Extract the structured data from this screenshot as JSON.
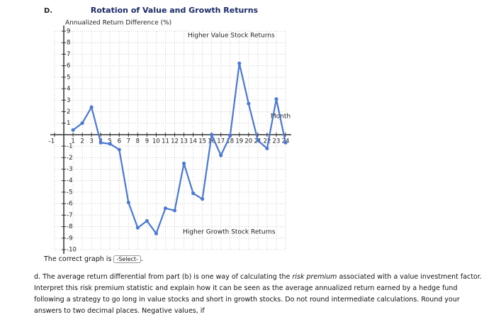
{
  "option_letter": "D.",
  "chart_data": {
    "type": "line",
    "title": "Rotation of Value and Growth Returns",
    "y_label": "Annualized Return Difference (%)",
    "annotations": [
      "Higher Value Stock Returns",
      "Month",
      "Higher Growth Stock Returns"
    ],
    "x": [
      1,
      2,
      3,
      4,
      5,
      6,
      7,
      8,
      9,
      10,
      11,
      12,
      13,
      14,
      15,
      16,
      17,
      18,
      19,
      20,
      21,
      22,
      23,
      24
    ],
    "series": [
      {
        "color": "#4a78d4",
        "values": [
          0.4,
          1.0,
          2.4,
          -0.7,
          -0.8,
          -1.3,
          -5.9,
          -8.1,
          -7.5,
          -8.6,
          -6.4,
          -6.6,
          -2.5,
          -5.1,
          -5.6,
          0,
          -1.8,
          -0.1,
          6.2,
          2.7,
          -0.5,
          -1.2,
          3.1,
          -0.7
        ]
      }
    ],
    "xlim": [
      -1,
      24
    ],
    "ylim": [
      -10,
      9
    ],
    "xticks": [
      -1,
      1,
      2,
      3,
      4,
      5,
      6,
      7,
      8,
      9,
      10,
      11,
      12,
      13,
      14,
      15,
      16,
      17,
      18,
      19,
      20,
      21,
      22,
      23,
      24
    ],
    "yticks": [
      9,
      8,
      7,
      6,
      5,
      4,
      3,
      2,
      1,
      -1,
      -2,
      -3,
      -4,
      -5,
      -6,
      -7,
      -8,
      -9,
      -10
    ],
    "grid": true
  },
  "prompt": {
    "before": "The correct graph is",
    "select": "-Select-",
    "after": "."
  },
  "question": [
    "d. The average return differential from part (b) is one way of calculating the ",
    "risk premium",
    " associated with a value investment factor. Interpret this risk premium statistic and explain how it can be seen as the average annualized return earned by a hedge fund following a strategy to go long in value stocks and short in growth stocks. Do not round intermediate calculations. Round your answers to two decimal places. Negative values, if"
  ]
}
